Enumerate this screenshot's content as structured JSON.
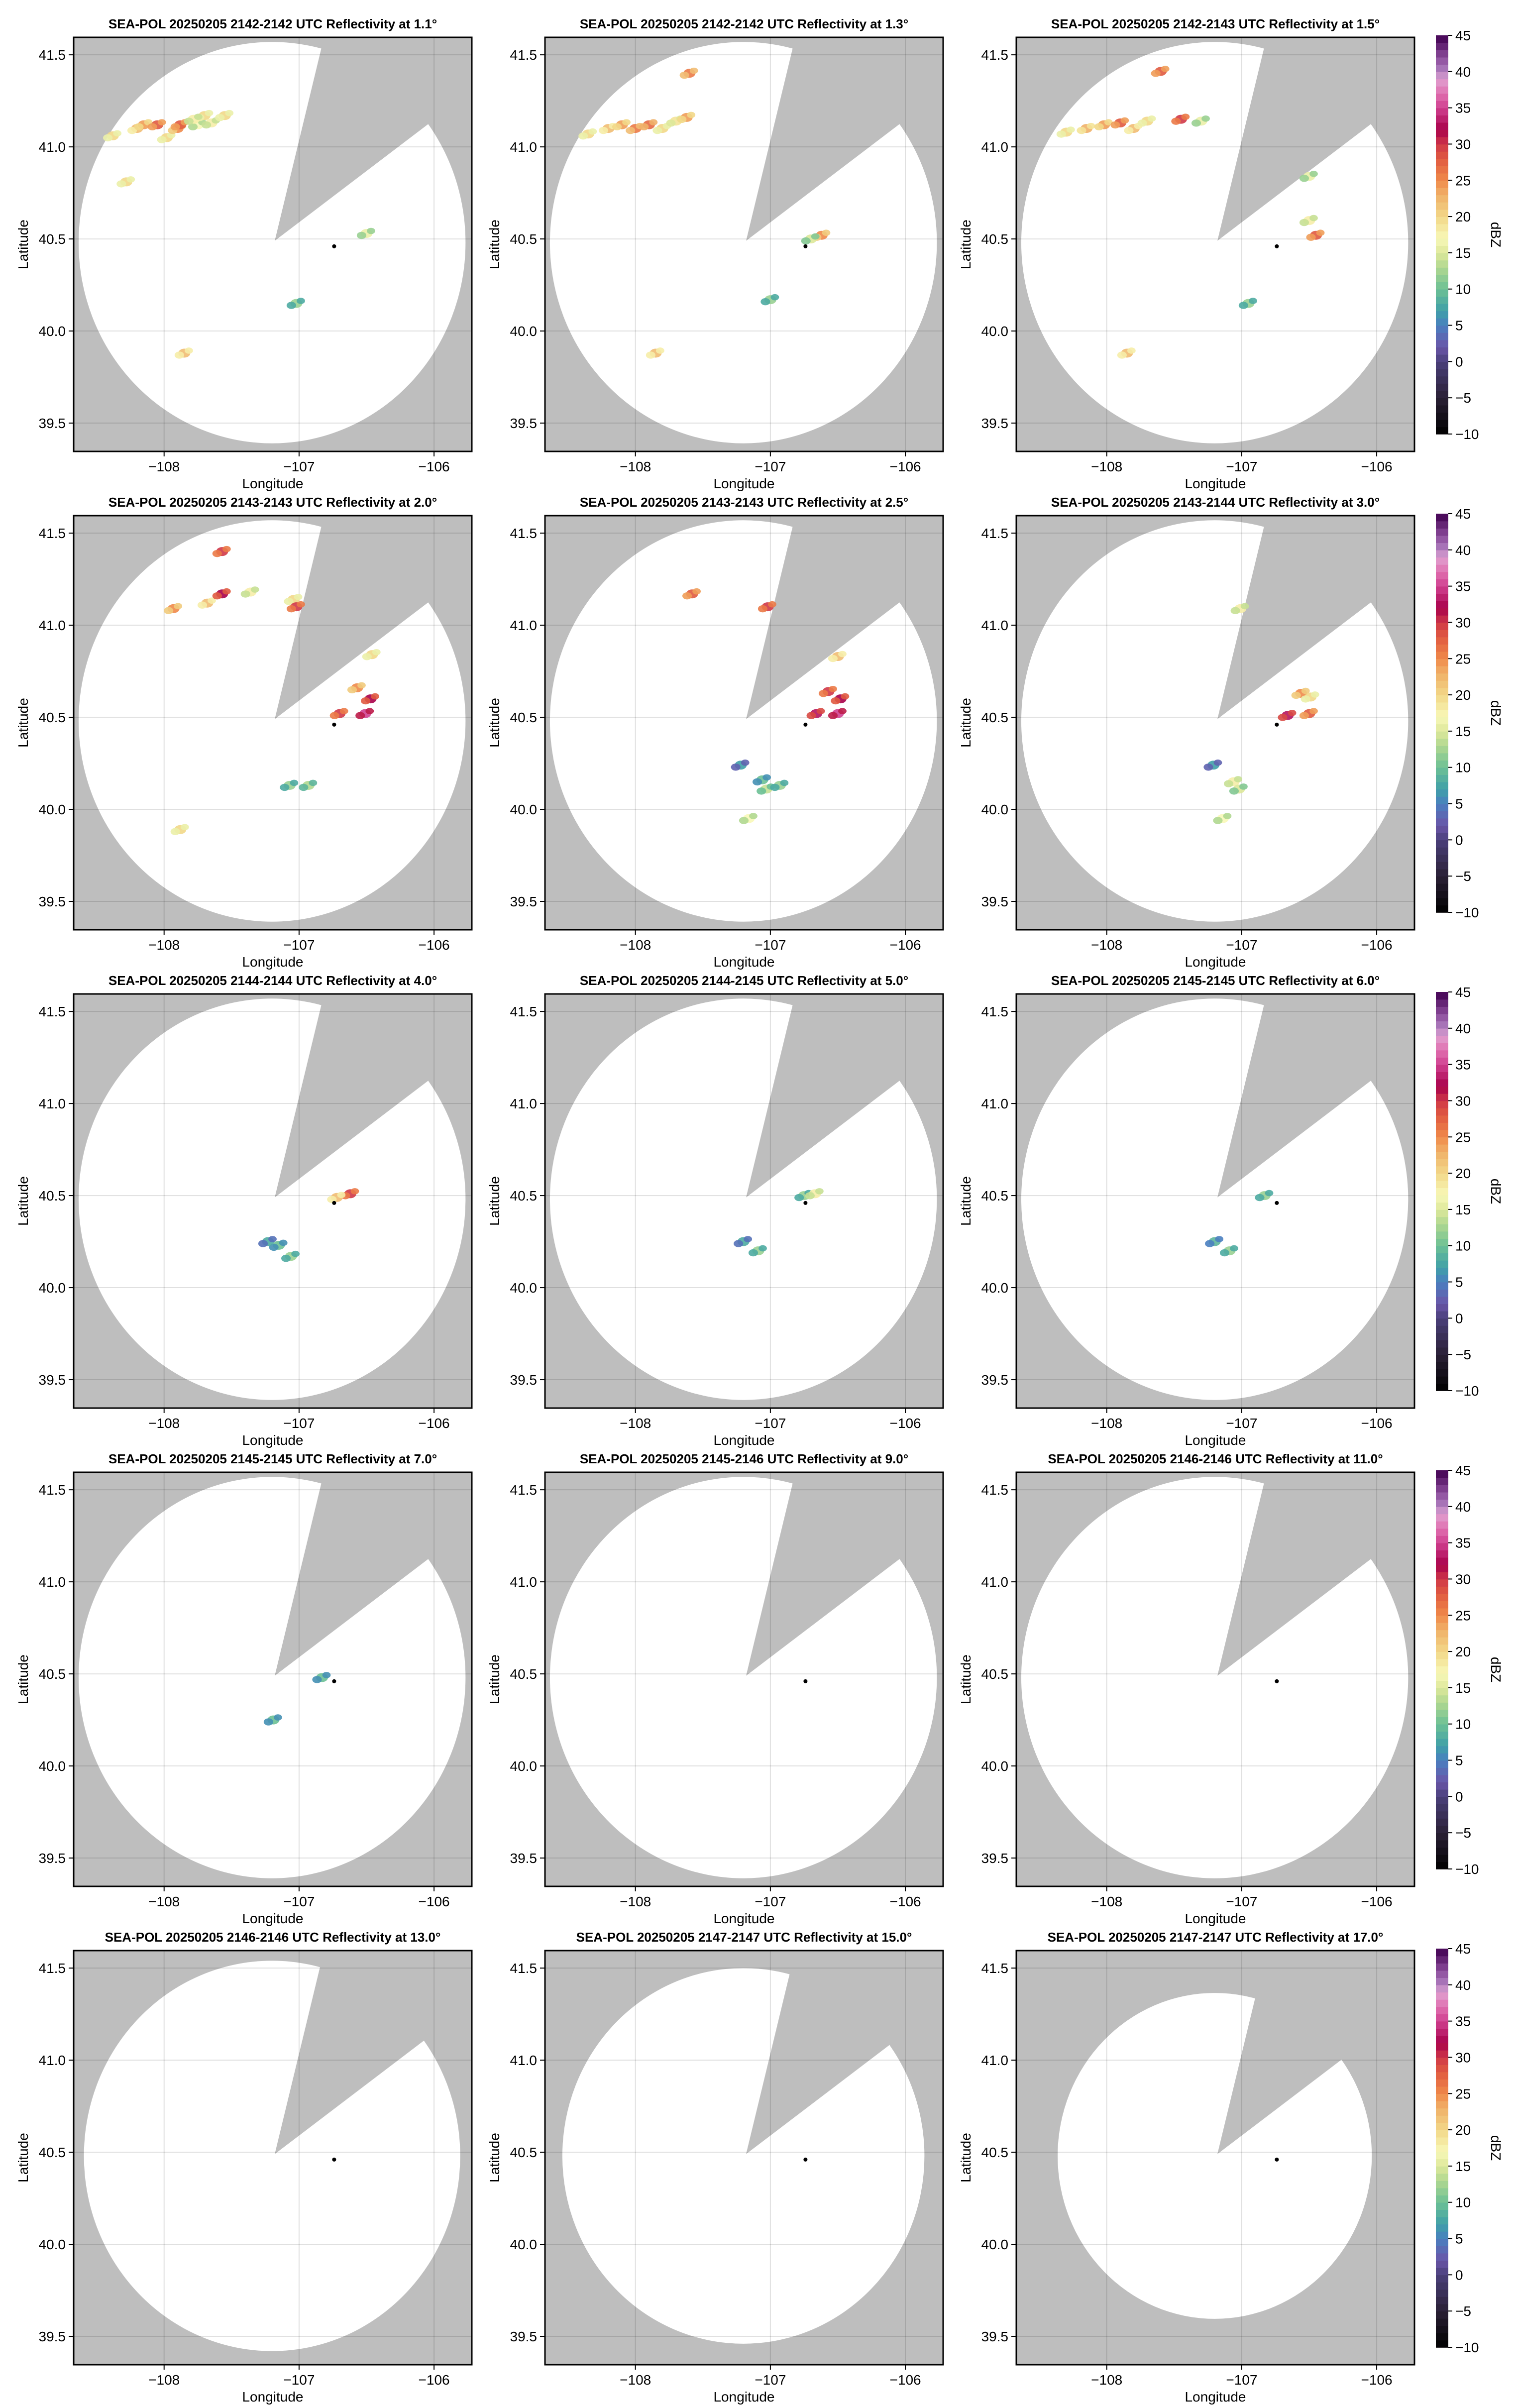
{
  "chart_data": {
    "type": "heatmap",
    "colorbar": {
      "label": "dBZ",
      "range": [
        -10,
        45
      ],
      "ticks": [
        "−10",
        "−5",
        "0",
        "5",
        "10",
        "15",
        "20",
        "25",
        "30",
        "35",
        "40",
        "45"
      ]
    },
    "xlabel": "Longitude",
    "ylabel": "Latitude",
    "xlim": [
      -108.67,
      -105.72
    ],
    "ylim": [
      39.346,
      41.595
    ],
    "xticks": [
      "−108",
      "−107",
      "−106"
    ],
    "xtick_values": [
      -108,
      -107,
      -106
    ],
    "yticks": [
      "39.5",
      "40.0",
      "40.5",
      "41.0",
      "41.5"
    ],
    "ytick_values": [
      39.5,
      40.0,
      40.5,
      41.0,
      41.5
    ],
    "grid": true,
    "colors": {
      "no_data": "#bebebe",
      "scanned": "#ffffff",
      "radar_marker": "#000000"
    },
    "radar_marker": [
      -106.74,
      40.46
    ],
    "panels": [
      {
        "title": "SEA-POL 20250205 2142-2142 UTC Reflectivity at 1.1°",
        "range_deg_lat": 1.09,
        "echoes": [
          [
            -108.38,
            41.06,
            20
          ],
          [
            -108.2,
            41.1,
            22
          ],
          [
            -108.15,
            41.12,
            24
          ],
          [
            -108.05,
            41.12,
            28
          ],
          [
            -107.98,
            41.05,
            20
          ],
          [
            -107.9,
            41.1,
            25
          ],
          [
            -107.88,
            41.12,
            28
          ],
          [
            -107.75,
            41.12,
            17
          ],
          [
            -107.65,
            41.13,
            18
          ],
          [
            -107.7,
            41.17,
            20
          ],
          [
            -107.78,
            41.15,
            18
          ],
          [
            -107.55,
            41.17,
            20
          ],
          [
            -108.28,
            40.81,
            20
          ],
          [
            -107.85,
            39.88,
            22
          ],
          [
            -106.5,
            40.53,
            16
          ],
          [
            -107.02,
            40.15,
            12
          ]
        ]
      },
      {
        "title": "SEA-POL 20250205 2142-2142 UTC Reflectivity at 1.3°",
        "range_deg_lat": 1.09,
        "echoes": [
          [
            -108.35,
            41.07,
            20
          ],
          [
            -108.2,
            41.1,
            22
          ],
          [
            -108.1,
            41.12,
            24
          ],
          [
            -108.0,
            41.1,
            26
          ],
          [
            -107.9,
            41.12,
            27
          ],
          [
            -107.8,
            41.1,
            20
          ],
          [
            -107.7,
            41.14,
            19
          ],
          [
            -107.62,
            41.16,
            24
          ],
          [
            -107.6,
            41.4,
            26
          ],
          [
            -106.62,
            40.52,
            25
          ],
          [
            -106.7,
            40.5,
            15
          ],
          [
            -107.0,
            40.17,
            12
          ],
          [
            -107.85,
            39.88,
            22
          ]
        ]
      },
      {
        "title": "SEA-POL 20250205 2142-2143 UTC Reflectivity at 1.5°",
        "range_deg_lat": 1.09,
        "echoes": [
          [
            -108.3,
            41.08,
            20
          ],
          [
            -108.15,
            41.1,
            23
          ],
          [
            -108.02,
            41.12,
            24
          ],
          [
            -107.9,
            41.13,
            28
          ],
          [
            -107.8,
            41.1,
            22
          ],
          [
            -107.7,
            41.14,
            20
          ],
          [
            -107.6,
            41.41,
            28
          ],
          [
            -107.45,
            41.15,
            30
          ],
          [
            -107.3,
            41.14,
            16
          ],
          [
            -106.5,
            40.6,
            18
          ],
          [
            -106.45,
            40.52,
            28
          ],
          [
            -106.5,
            40.84,
            16
          ],
          [
            -106.95,
            40.15,
            12
          ],
          [
            -107.85,
            39.88,
            22
          ]
        ]
      },
      {
        "title": "SEA-POL 20250205 2143-2143 UTC Reflectivity at 2.0°",
        "range_deg_lat": 1.09,
        "echoes": [
          [
            -107.57,
            41.4,
            30
          ],
          [
            -107.68,
            41.12,
            22
          ],
          [
            -107.57,
            41.17,
            32
          ],
          [
            -107.93,
            41.09,
            25
          ],
          [
            -107.04,
            41.14,
            20
          ],
          [
            -107.02,
            41.1,
            30
          ],
          [
            -106.46,
            40.84,
            20
          ],
          [
            -106.57,
            40.66,
            25
          ],
          [
            -106.47,
            40.6,
            32
          ],
          [
            -106.51,
            40.52,
            35
          ],
          [
            -106.7,
            40.52,
            30
          ],
          [
            -107.07,
            40.13,
            12
          ],
          [
            -106.93,
            40.13,
            13
          ],
          [
            -107.88,
            39.89,
            20
          ],
          [
            -107.36,
            41.18,
            18
          ]
        ]
      },
      {
        "title": "SEA-POL 20250205 2143-2143 UTC Reflectivity at 2.5°",
        "range_deg_lat": 1.09,
        "echoes": [
          [
            -107.58,
            41.17,
            28
          ],
          [
            -107.02,
            41.1,
            30
          ],
          [
            -106.5,
            40.83,
            22
          ],
          [
            -106.57,
            40.64,
            30
          ],
          [
            -106.48,
            40.6,
            32
          ],
          [
            -106.66,
            40.52,
            33
          ],
          [
            -106.5,
            40.52,
            35
          ],
          [
            -107.22,
            40.24,
            7
          ],
          [
            -107.06,
            40.16,
            10
          ],
          [
            -107.03,
            40.11,
            14
          ],
          [
            -106.93,
            40.13,
            12
          ],
          [
            -107.16,
            39.95,
            17
          ]
        ]
      },
      {
        "title": "SEA-POL 20250205 2143-2144 UTC Reflectivity at 3.0°",
        "range_deg_lat": 1.09,
        "echoes": [
          [
            -107.01,
            41.09,
            18
          ],
          [
            -106.56,
            40.63,
            25
          ],
          [
            -106.49,
            40.61,
            20
          ],
          [
            -106.66,
            40.51,
            33
          ],
          [
            -106.5,
            40.52,
            28
          ],
          [
            -107.21,
            40.24,
            7
          ],
          [
            -107.06,
            40.15,
            18
          ],
          [
            -107.02,
            40.11,
            15
          ],
          [
            -107.14,
            39.95,
            17
          ]
        ]
      },
      {
        "title": "SEA-POL 20250205 2144-2144 UTC Reflectivity at 4.0°",
        "range_deg_lat": 1.09,
        "echoes": [
          [
            -106.62,
            40.51,
            30
          ],
          [
            -106.72,
            40.49,
            22
          ],
          [
            -107.15,
            40.23,
            10
          ],
          [
            -107.06,
            40.17,
            12
          ],
          [
            -107.23,
            40.25,
            8
          ]
        ]
      },
      {
        "title": "SEA-POL 20250205 2144-2145 UTC Reflectivity at 5.0°",
        "range_deg_lat": 1.09,
        "echoes": [
          [
            -106.75,
            40.5,
            12
          ],
          [
            -106.67,
            40.51,
            18
          ],
          [
            -107.2,
            40.25,
            8
          ],
          [
            -107.09,
            40.2,
            12
          ]
        ]
      },
      {
        "title": "SEA-POL 20250205 2145-2145 UTC Reflectivity at 6.0°",
        "range_deg_lat": 1.09,
        "echoes": [
          [
            -106.83,
            40.5,
            12
          ],
          [
            -107.2,
            40.25,
            9
          ],
          [
            -107.09,
            40.2,
            12
          ]
        ]
      },
      {
        "title": "SEA-POL 20250205 2145-2145 UTC Reflectivity at 7.0°",
        "range_deg_lat": 1.09,
        "echoes": [
          [
            -106.83,
            40.48,
            10
          ],
          [
            -107.19,
            40.25,
            10
          ]
        ]
      },
      {
        "title": "SEA-POL 20250205 2145-2146 UTC Reflectivity at 9.0°",
        "range_deg_lat": 1.09,
        "echoes": []
      },
      {
        "title": "SEA-POL 20250205 2146-2146 UTC Reflectivity at 11.0°",
        "range_deg_lat": 1.09,
        "echoes": []
      },
      {
        "title": "SEA-POL 20250205 2146-2146 UTC Reflectivity at 13.0°",
        "range_deg_lat": 1.06,
        "echoes": []
      },
      {
        "title": "SEA-POL 20250205 2147-2147 UTC Reflectivity at 15.0°",
        "range_deg_lat": 1.02,
        "echoes": []
      },
      {
        "title": "SEA-POL 20250205 2147-2147 UTC Reflectivity at 17.0°",
        "range_deg_lat": 0.885,
        "echoes": []
      }
    ]
  }
}
